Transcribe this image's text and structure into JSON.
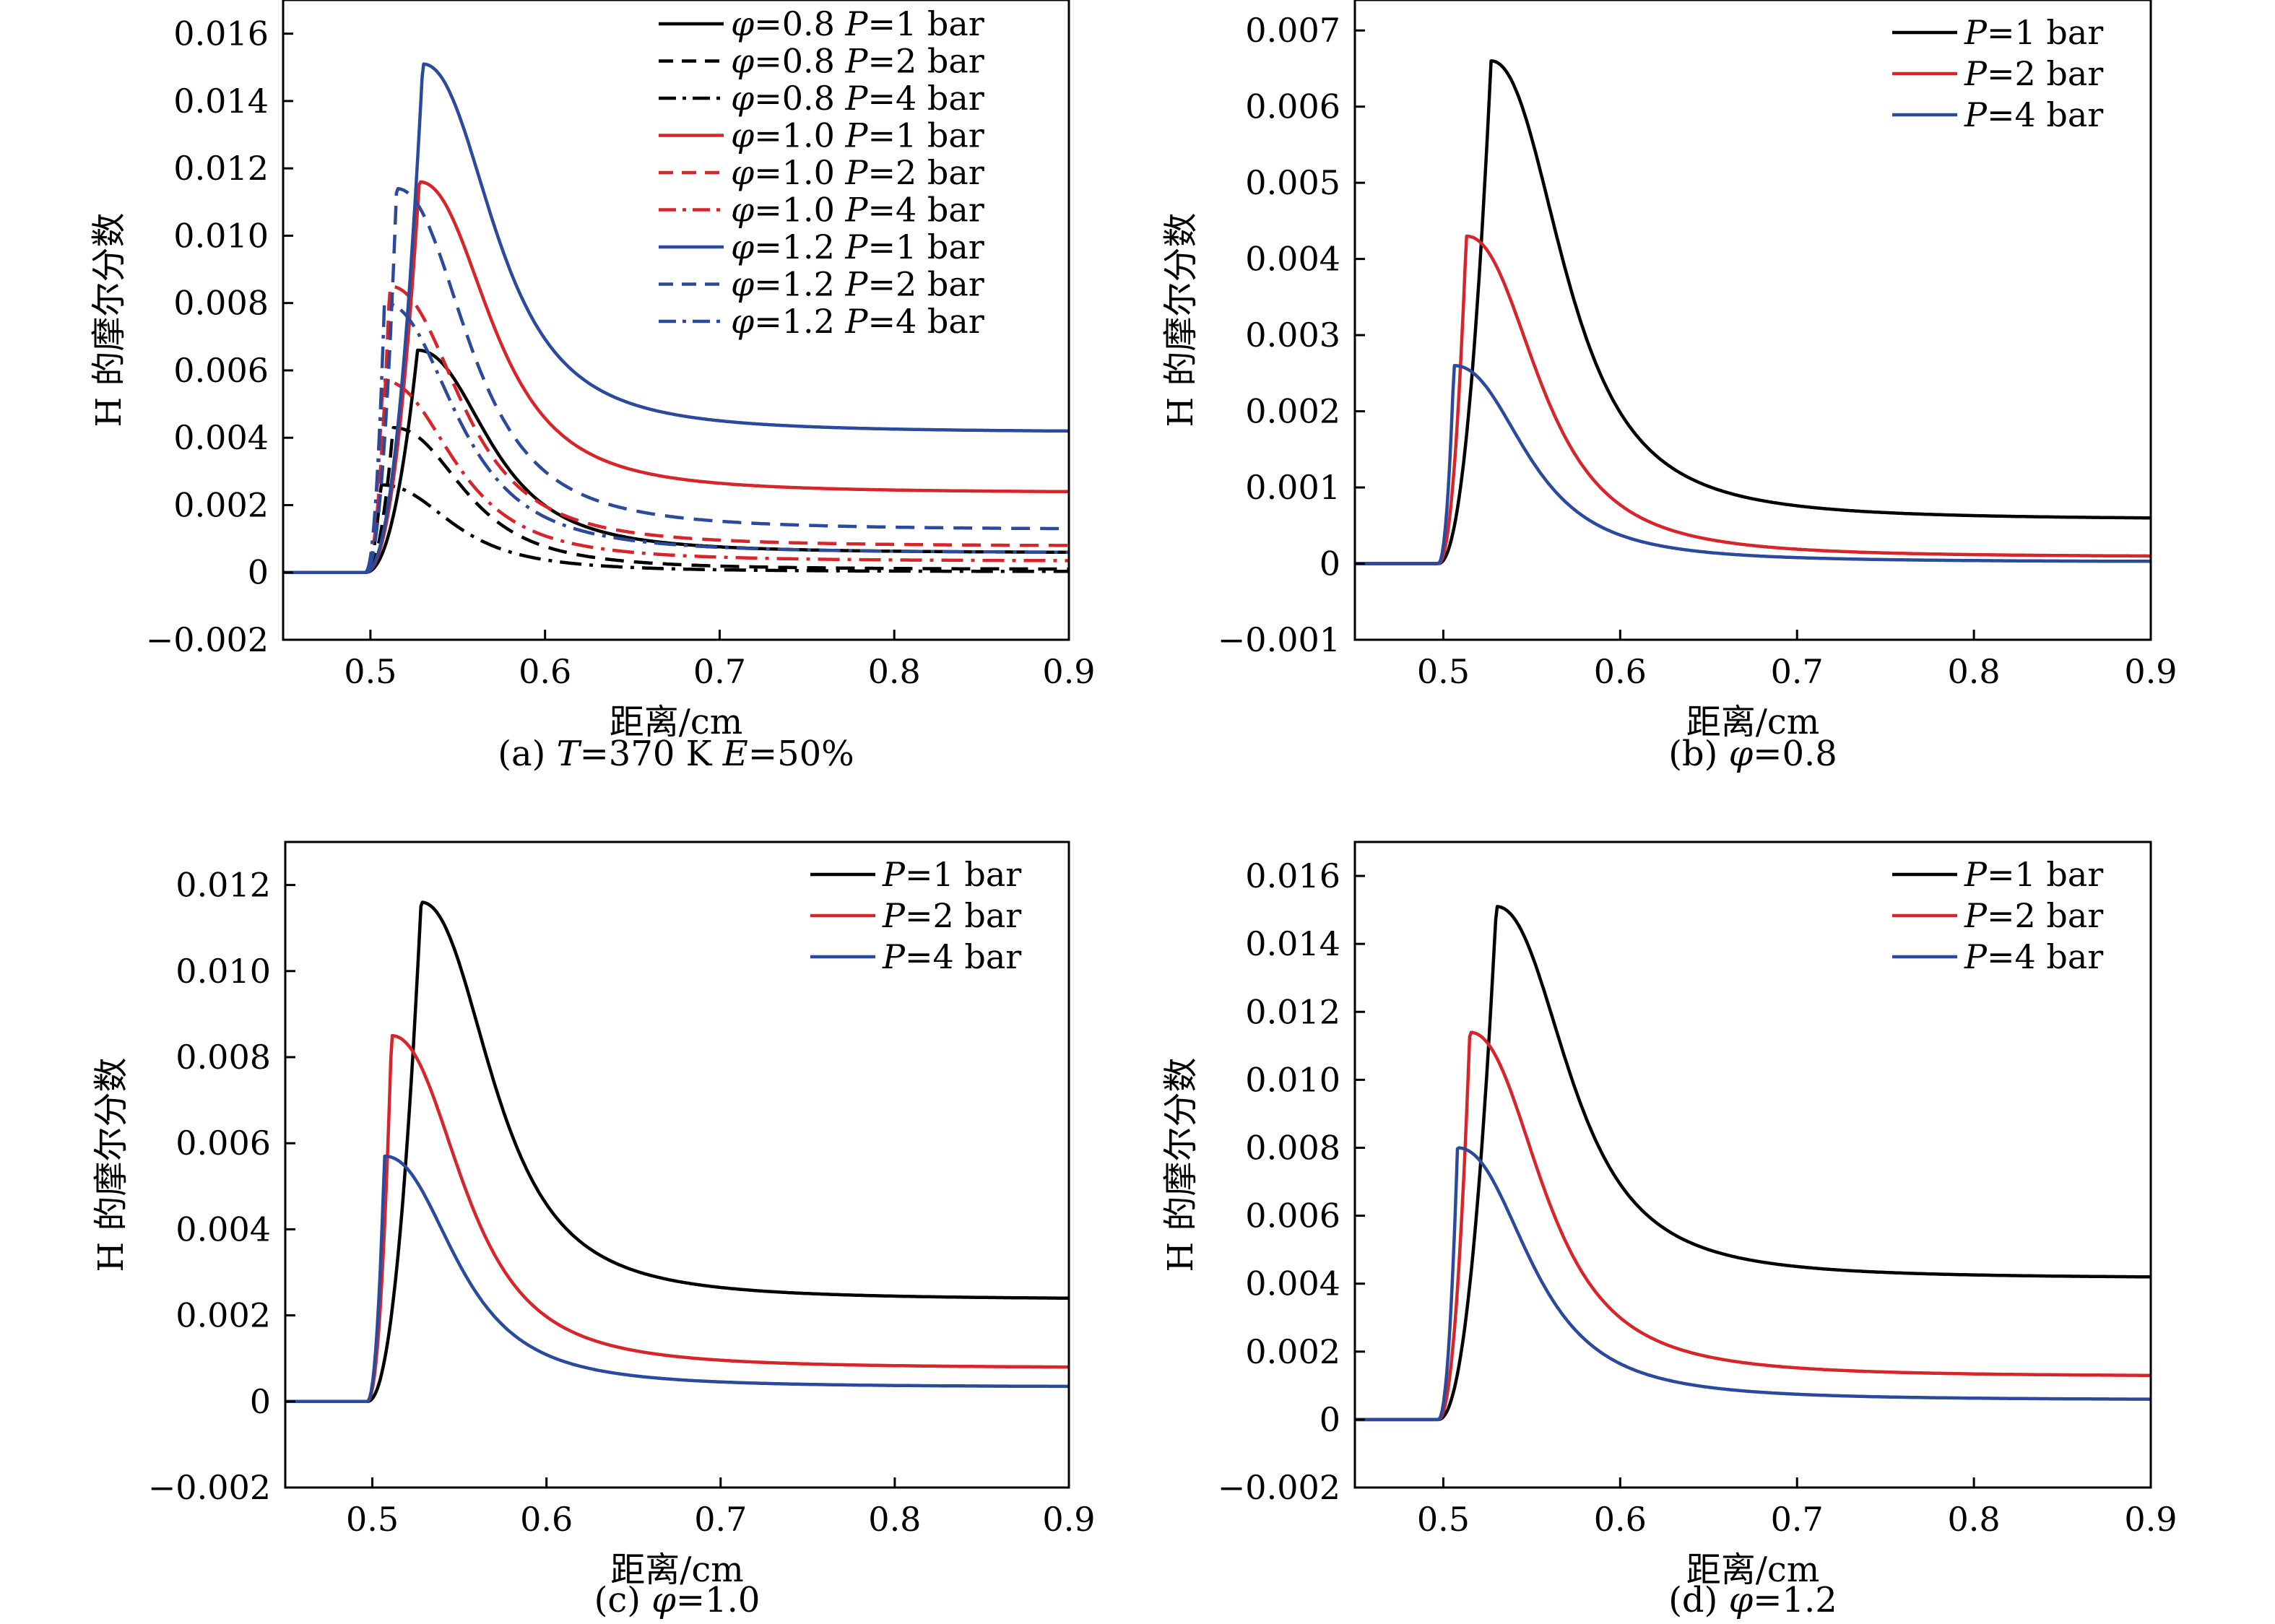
{
  "chart_data": [
    {
      "id": "a",
      "type": "line",
      "caption": "(a) T=370 K E=50%",
      "caption_parts": [
        {
          "t": "(a) ",
          "i": false
        },
        {
          "t": "T",
          "i": true
        },
        {
          "t": "=370 K ",
          "i": false
        },
        {
          "t": "E",
          "i": true
        },
        {
          "t": "=50%",
          "i": false
        }
      ],
      "xlabel": "距离/cm",
      "ylabel": "H 的摩尔分数",
      "xlim": [
        0.45,
        0.9
      ],
      "ylim": [
        -0.002,
        0.017
      ],
      "xticks": [
        0.5,
        0.6,
        0.7,
        0.8,
        0.9
      ],
      "xtick_labels": [
        "0.5",
        "0.6",
        "0.7",
        "0.8",
        "0.9"
      ],
      "yticks": [
        -0.002,
        0,
        0.002,
        0.004,
        0.006,
        0.008,
        0.01,
        0.012,
        0.014,
        0.016
      ],
      "ytick_labels": [
        "−0.002",
        "0",
        "0.002",
        "0.004",
        "0.006",
        "0.008",
        "0.010",
        "0.012",
        "0.014",
        "0.016"
      ],
      "legend_position": "top-right",
      "series": [
        {
          "name": "φ=0.8 P=1 bar",
          "name_parts": [
            {
              "t": "φ",
              "i": true
            },
            {
              "t": "=0.8 ",
              "i": false
            },
            {
              "t": "P",
              "i": true
            },
            {
              "t": "=1 bar",
              "i": false
            }
          ],
          "color": "#000000",
          "dash": "solid",
          "peak_x": 0.527,
          "peak_y": 0.0066,
          "tail_y": 0.0006
        },
        {
          "name": "φ=0.8 P=2 bar",
          "name_parts": [
            {
              "t": "φ",
              "i": true
            },
            {
              "t": "=0.8 ",
              "i": false
            },
            {
              "t": "P",
              "i": true
            },
            {
              "t": "=2 bar",
              "i": false
            }
          ],
          "color": "#000000",
          "dash": "dashed",
          "peak_x": 0.513,
          "peak_y": 0.0043,
          "tail_y": 0.0001
        },
        {
          "name": "φ=0.8 P=4 bar",
          "name_parts": [
            {
              "t": "φ",
              "i": true
            },
            {
              "t": "=0.8 ",
              "i": false
            },
            {
              "t": "P",
              "i": true
            },
            {
              "t": "=4 bar",
              "i": false
            }
          ],
          "color": "#000000",
          "dash": "dashdot",
          "peak_x": 0.506,
          "peak_y": 0.0026,
          "tail_y": 3e-05
        },
        {
          "name": "φ=1.0 P=1 bar",
          "name_parts": [
            {
              "t": "φ",
              "i": true
            },
            {
              "t": "=1.0 ",
              "i": false
            },
            {
              "t": "P",
              "i": true
            },
            {
              "t": "=1 bar",
              "i": false
            }
          ],
          "color": "#d7262b",
          "dash": "solid",
          "peak_x": 0.528,
          "peak_y": 0.0116,
          "tail_y": 0.0024
        },
        {
          "name": "φ=1.0 P=2 bar",
          "name_parts": [
            {
              "t": "φ",
              "i": true
            },
            {
              "t": "=1.0 ",
              "i": false
            },
            {
              "t": "P",
              "i": true
            },
            {
              "t": "=2 bar",
              "i": false
            }
          ],
          "color": "#d7262b",
          "dash": "dashed",
          "peak_x": 0.511,
          "peak_y": 0.0085,
          "tail_y": 0.0008
        },
        {
          "name": "φ=1.0 P=4 bar",
          "name_parts": [
            {
              "t": "φ",
              "i": true
            },
            {
              "t": "=1.0 ",
              "i": false
            },
            {
              "t": "P",
              "i": true
            },
            {
              "t": "=4 bar",
              "i": false
            }
          ],
          "color": "#d7262b",
          "dash": "dashdot",
          "peak_x": 0.507,
          "peak_y": 0.0057,
          "tail_y": 0.00035
        },
        {
          "name": "φ=1.2 P=1 bar",
          "name_parts": [
            {
              "t": "φ",
              "i": true
            },
            {
              "t": "=1.2 ",
              "i": false
            },
            {
              "t": "P",
              "i": true
            },
            {
              "t": "=1 bar",
              "i": false
            }
          ],
          "color": "#2b4a9b",
          "dash": "solid",
          "peak_x": 0.53,
          "peak_y": 0.0151,
          "tail_y": 0.0042
        },
        {
          "name": "φ=1.2 P=2 bar",
          "name_parts": [
            {
              "t": "φ",
              "i": true
            },
            {
              "t": "=1.2 ",
              "i": false
            },
            {
              "t": "P",
              "i": true
            },
            {
              "t": "=2 bar",
              "i": false
            }
          ],
          "color": "#2b4a9b",
          "dash": "dashed",
          "peak_x": 0.515,
          "peak_y": 0.0114,
          "tail_y": 0.0013
        },
        {
          "name": "φ=1.2 P=4 bar",
          "name_parts": [
            {
              "t": "φ",
              "i": true
            },
            {
              "t": "=1.2 ",
              "i": false
            },
            {
              "t": "P",
              "i": true
            },
            {
              "t": "=4 bar",
              "i": false
            }
          ],
          "color": "#2b4a9b",
          "dash": "dashdot",
          "peak_x": 0.508,
          "peak_y": 0.008,
          "tail_y": 0.0006
        }
      ]
    },
    {
      "id": "b",
      "type": "line",
      "caption": "(b) φ=0.8",
      "caption_parts": [
        {
          "t": "(b) ",
          "i": false
        },
        {
          "t": "φ",
          "i": true
        },
        {
          "t": "=0.8",
          "i": false
        }
      ],
      "xlabel": "距离/cm",
      "ylabel": "H 的摩尔分数",
      "xlim": [
        0.45,
        0.9
      ],
      "ylim": [
        -0.001,
        0.0074
      ],
      "xticks": [
        0.5,
        0.6,
        0.7,
        0.8,
        0.9
      ],
      "xtick_labels": [
        "0.5",
        "0.6",
        "0.7",
        "0.8",
        "0.9"
      ],
      "yticks": [
        -0.001,
        0,
        0.001,
        0.002,
        0.003,
        0.004,
        0.005,
        0.006,
        0.007
      ],
      "ytick_labels": [
        "−0.001",
        "0",
        "0.001",
        "0.002",
        "0.003",
        "0.004",
        "0.005",
        "0.006",
        "0.007"
      ],
      "legend_position": "top-right",
      "series": [
        {
          "name": "P=1 bar",
          "name_parts": [
            {
              "t": "P",
              "i": true
            },
            {
              "t": "=1 bar",
              "i": false
            }
          ],
          "color": "#000000",
          "dash": "solid",
          "peak_x": 0.527,
          "peak_y": 0.0066,
          "tail_y": 0.0006
        },
        {
          "name": "P=2 bar",
          "name_parts": [
            {
              "t": "P",
              "i": true
            },
            {
              "t": "=2 bar",
              "i": false
            }
          ],
          "color": "#d7262b",
          "dash": "solid",
          "peak_x": 0.513,
          "peak_y": 0.0043,
          "tail_y": 0.0001
        },
        {
          "name": "P=4 bar",
          "name_parts": [
            {
              "t": "P",
              "i": true
            },
            {
              "t": "=4 bar",
              "i": false
            }
          ],
          "color": "#2b4a9b",
          "dash": "solid",
          "peak_x": 0.506,
          "peak_y": 0.0026,
          "tail_y": 3e-05
        }
      ]
    },
    {
      "id": "c",
      "type": "line",
      "caption": "(c) φ=1.0",
      "caption_parts": [
        {
          "t": "(c) ",
          "i": false
        },
        {
          "t": "φ",
          "i": true
        },
        {
          "t": "=1.0",
          "i": false
        }
      ],
      "xlabel": "距离/cm",
      "ylabel": "H 的摩尔分数",
      "xlim": [
        0.45,
        0.9
      ],
      "ylim": [
        -0.002,
        0.013
      ],
      "xticks": [
        0.5,
        0.6,
        0.7,
        0.8,
        0.9
      ],
      "xtick_labels": [
        "0.5",
        "0.6",
        "0.7",
        "0.8",
        "0.9"
      ],
      "yticks": [
        -0.002,
        0,
        0.002,
        0.004,
        0.006,
        0.008,
        0.01,
        0.012
      ],
      "ytick_labels": [
        "−0.002",
        "0",
        "0.002",
        "0.004",
        "0.006",
        "0.008",
        "0.010",
        "0.012"
      ],
      "legend_position": "top-right",
      "series": [
        {
          "name": "P=1 bar",
          "name_parts": [
            {
              "t": "P",
              "i": true
            },
            {
              "t": "=1 bar",
              "i": false
            }
          ],
          "color": "#000000",
          "dash": "solid",
          "peak_x": 0.528,
          "peak_y": 0.0116,
          "tail_y": 0.0024
        },
        {
          "name": "P=2 bar",
          "name_parts": [
            {
              "t": "P",
              "i": true
            },
            {
              "t": "=2 bar",
              "i": false
            }
          ],
          "color": "#d7262b",
          "dash": "solid",
          "peak_x": 0.511,
          "peak_y": 0.0085,
          "tail_y": 0.0008
        },
        {
          "name": "P=4 bar",
          "name_parts": [
            {
              "t": "P",
              "i": true
            },
            {
              "t": "=4 bar",
              "i": false
            }
          ],
          "color": "#2b4a9b",
          "dash": "solid",
          "peak_x": 0.507,
          "peak_y": 0.0057,
          "tail_y": 0.00035
        }
      ]
    },
    {
      "id": "d",
      "type": "line",
      "caption": "(d) φ=1.2",
      "caption_parts": [
        {
          "t": "(d) ",
          "i": false
        },
        {
          "t": "φ",
          "i": true
        },
        {
          "t": "=1.2",
          "i": false
        }
      ],
      "xlabel": "距离/cm",
      "ylabel": "H 的摩尔分数",
      "xlim": [
        0.45,
        0.9
      ],
      "ylim": [
        -0.002,
        0.017
      ],
      "xticks": [
        0.5,
        0.6,
        0.7,
        0.8,
        0.9
      ],
      "xtick_labels": [
        "0.5",
        "0.6",
        "0.7",
        "0.8",
        "0.9"
      ],
      "yticks": [
        -0.002,
        0,
        0.002,
        0.004,
        0.006,
        0.008,
        0.01,
        0.012,
        0.014,
        0.016
      ],
      "ytick_labels": [
        "−0.002",
        "0",
        "0.002",
        "0.004",
        "0.006",
        "0.008",
        "0.010",
        "0.012",
        "0.014",
        "0.016"
      ],
      "legend_position": "top-right",
      "series": [
        {
          "name": "P=1 bar",
          "name_parts": [
            {
              "t": "P",
              "i": true
            },
            {
              "t": "=1 bar",
              "i": false
            }
          ],
          "color": "#000000",
          "dash": "solid",
          "peak_x": 0.53,
          "peak_y": 0.0151,
          "tail_y": 0.0042
        },
        {
          "name": "P=2 bar",
          "name_parts": [
            {
              "t": "P",
              "i": true
            },
            {
              "t": "=2 bar",
              "i": false
            }
          ],
          "color": "#d7262b",
          "dash": "solid",
          "peak_x": 0.515,
          "peak_y": 0.0114,
          "tail_y": 0.0013
        },
        {
          "name": "P=4 bar",
          "name_parts": [
            {
              "t": "P",
              "i": true
            },
            {
              "t": "=4 bar",
              "i": false
            }
          ],
          "color": "#2b4a9b",
          "dash": "solid",
          "peak_x": 0.508,
          "peak_y": 0.008,
          "tail_y": 0.0006
        }
      ]
    }
  ]
}
